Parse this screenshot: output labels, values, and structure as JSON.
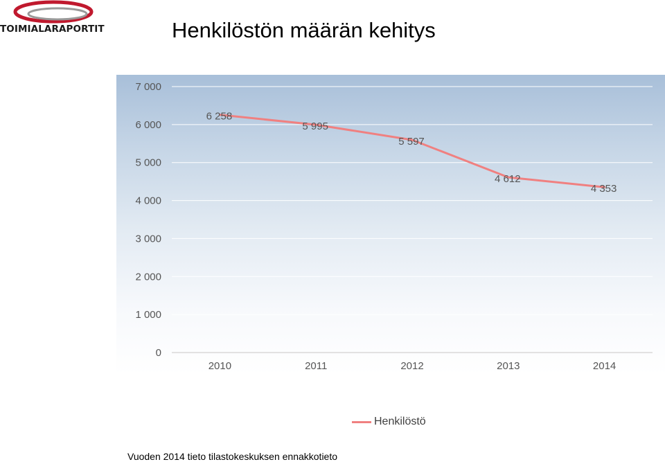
{
  "logo": {
    "text": "TOIMIALARAPORTIT"
  },
  "page_title": "Henkilöstön määrän kehitys",
  "footnote": "Vuoden 2014 tieto tilastokeskuksen ennakkotieto",
  "colors": {
    "series_line": "#f08080",
    "gridline": "#ffffff",
    "tick_text": "#555555"
  },
  "chart_data": {
    "type": "line",
    "title": "",
    "xlabel": "",
    "ylabel": "",
    "categories": [
      "2010",
      "2011",
      "2012",
      "2013",
      "2014"
    ],
    "series": [
      {
        "name": "Henkilöstö",
        "values": [
          6258,
          5995,
          5597,
          4612,
          4353
        ],
        "labels": [
          "6 258",
          "5 995",
          "5 597",
          "4 612",
          "4 353"
        ]
      }
    ],
    "ylim": [
      0,
      7000
    ],
    "yticks": [
      0,
      1000,
      2000,
      3000,
      4000,
      5000,
      6000,
      7000
    ],
    "ytick_labels": [
      "0",
      "1 000",
      "2 000",
      "3 000",
      "4 000",
      "5 000",
      "6 000",
      "7 000"
    ],
    "grid": true,
    "legend": "bottom"
  }
}
